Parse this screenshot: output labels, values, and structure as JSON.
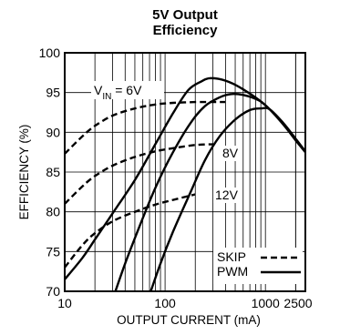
{
  "chart_data": {
    "type": "line",
    "title": [
      "5V Output",
      "Efficiency"
    ],
    "xlabel": "OUTPUT CURRENT (mA)",
    "ylabel": "EFFICIENCY (%)",
    "x_scale": "log",
    "xlim": [
      10,
      2500
    ],
    "ylim": [
      70,
      100
    ],
    "x_ticks": [
      10,
      100,
      1000,
      2500
    ],
    "x_tick_labels": [
      "10",
      "100",
      "1000",
      "2500"
    ],
    "y_ticks": [
      70,
      75,
      80,
      85,
      90,
      95,
      100
    ],
    "y_tick_labels": [
      "70",
      "75",
      "80",
      "85",
      "90",
      "95",
      "100"
    ],
    "grid": true,
    "legend": {
      "position": "bottom-right",
      "entries": [
        {
          "label": "SKIP",
          "style": "dashed"
        },
        {
          "label": "PWM",
          "style": "solid"
        }
      ]
    },
    "annotations": [
      {
        "text_main": "V",
        "text_sub": "IN",
        "text_rest": " = 6V",
        "series": "6V"
      },
      {
        "text": "8V",
        "series": "8V"
      },
      {
        "text": "12V",
        "series": "12V"
      }
    ],
    "series": [
      {
        "style": "dashed",
        "points": [
          [
            10,
            87.3
          ],
          [
            15,
            89.5
          ],
          [
            20,
            90.8
          ],
          [
            30,
            92.1
          ],
          [
            50,
            93.0
          ],
          [
            80,
            93.5
          ],
          [
            120,
            93.7
          ],
          [
            200,
            93.8
          ],
          [
            300,
            93.8
          ],
          [
            400,
            93.8
          ]
        ]
      },
      {
        "style": "dashed",
        "points": [
          [
            10,
            81.0
          ],
          [
            15,
            83.2
          ],
          [
            20,
            84.5
          ],
          [
            30,
            85.8
          ],
          [
            50,
            86.9
          ],
          [
            80,
            87.6
          ],
          [
            120,
            88.0
          ],
          [
            200,
            88.4
          ],
          [
            300,
            88.5
          ]
        ]
      },
      {
        "style": "dashed",
        "points": [
          [
            10,
            73.0
          ],
          [
            15,
            75.8
          ],
          [
            20,
            77.3
          ],
          [
            30,
            78.8
          ],
          [
            50,
            80.0
          ],
          [
            80,
            80.9
          ],
          [
            120,
            81.5
          ],
          [
            200,
            82.2
          ]
        ]
      },
      {
        "style": "solid",
        "points": [
          [
            10,
            71.5
          ],
          [
            15,
            74.2
          ],
          [
            20,
            76.5
          ],
          [
            30,
            79.8
          ],
          [
            50,
            84.0
          ],
          [
            80,
            88.5
          ],
          [
            120,
            92.4
          ],
          [
            170,
            95.3
          ],
          [
            230,
            96.4
          ],
          [
            280,
            96.8
          ],
          [
            400,
            96.5
          ],
          [
            600,
            95.4
          ],
          [
            1000,
            93.4
          ],
          [
            1500,
            91.0
          ],
          [
            2000,
            89.0
          ],
          [
            2500,
            87.5
          ]
        ]
      },
      {
        "style": "solid",
        "points": [
          [
            32,
            70.0
          ],
          [
            40,
            73.5
          ],
          [
            55,
            78.0
          ],
          [
            80,
            83.0
          ],
          [
            120,
            87.5
          ],
          [
            180,
            91.2
          ],
          [
            250,
            93.3
          ],
          [
            350,
            94.4
          ],
          [
            450,
            94.8
          ],
          [
            600,
            94.7
          ],
          [
            800,
            94.2
          ],
          [
            1000,
            93.4
          ],
          [
            1500,
            91.1
          ],
          [
            2000,
            89.1
          ],
          [
            2500,
            87.6
          ]
        ]
      },
      {
        "style": "solid",
        "points": [
          [
            72,
            70.0
          ],
          [
            90,
            73.5
          ],
          [
            120,
            77.5
          ],
          [
            180,
            82.5
          ],
          [
            250,
            86.5
          ],
          [
            350,
            89.5
          ],
          [
            500,
            91.6
          ],
          [
            700,
            92.8
          ],
          [
            900,
            93.0
          ],
          [
            1100,
            92.9
          ],
          [
            1500,
            91.2
          ],
          [
            2000,
            89.2
          ],
          [
            2500,
            87.6
          ]
        ]
      }
    ]
  }
}
